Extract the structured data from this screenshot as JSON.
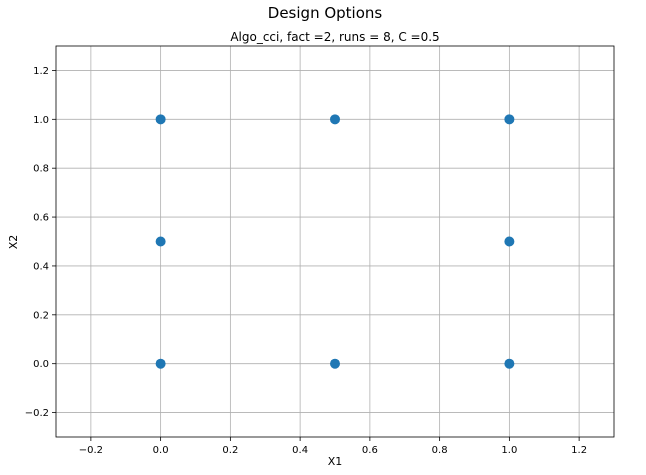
{
  "figure": {
    "suptitle": "Design Options"
  },
  "chart_data": {
    "type": "scatter",
    "title": "Algo_cci, fact =2, runs = 8, C =0.5",
    "xlabel": "X1",
    "ylabel": "X2",
    "xlim": [
      -0.3,
      1.3
    ],
    "ylim": [
      -0.3,
      1.3
    ],
    "xticks": [
      -0.2,
      0.0,
      0.2,
      0.4,
      0.6,
      0.8,
      1.0,
      1.2
    ],
    "xtick_labels": [
      "−0.2",
      "0.0",
      "0.2",
      "0.4",
      "0.6",
      "0.8",
      "1.0",
      "1.2"
    ],
    "yticks": [
      -0.2,
      0.0,
      0.2,
      0.4,
      0.6,
      0.8,
      1.0,
      1.2
    ],
    "ytick_labels": [
      "−0.2",
      "0.0",
      "0.2",
      "0.4",
      "0.6",
      "0.8",
      "1.0",
      "1.2"
    ],
    "grid": true,
    "color": "#1f77b4",
    "points": [
      {
        "x": 0.0,
        "y": 1.0
      },
      {
        "x": 0.5,
        "y": 1.0
      },
      {
        "x": 1.0,
        "y": 1.0
      },
      {
        "x": 0.0,
        "y": 0.5
      },
      {
        "x": 1.0,
        "y": 0.5
      },
      {
        "x": 0.0,
        "y": 0.0
      },
      {
        "x": 0.5,
        "y": 0.0
      },
      {
        "x": 1.0,
        "y": 0.0
      }
    ]
  }
}
